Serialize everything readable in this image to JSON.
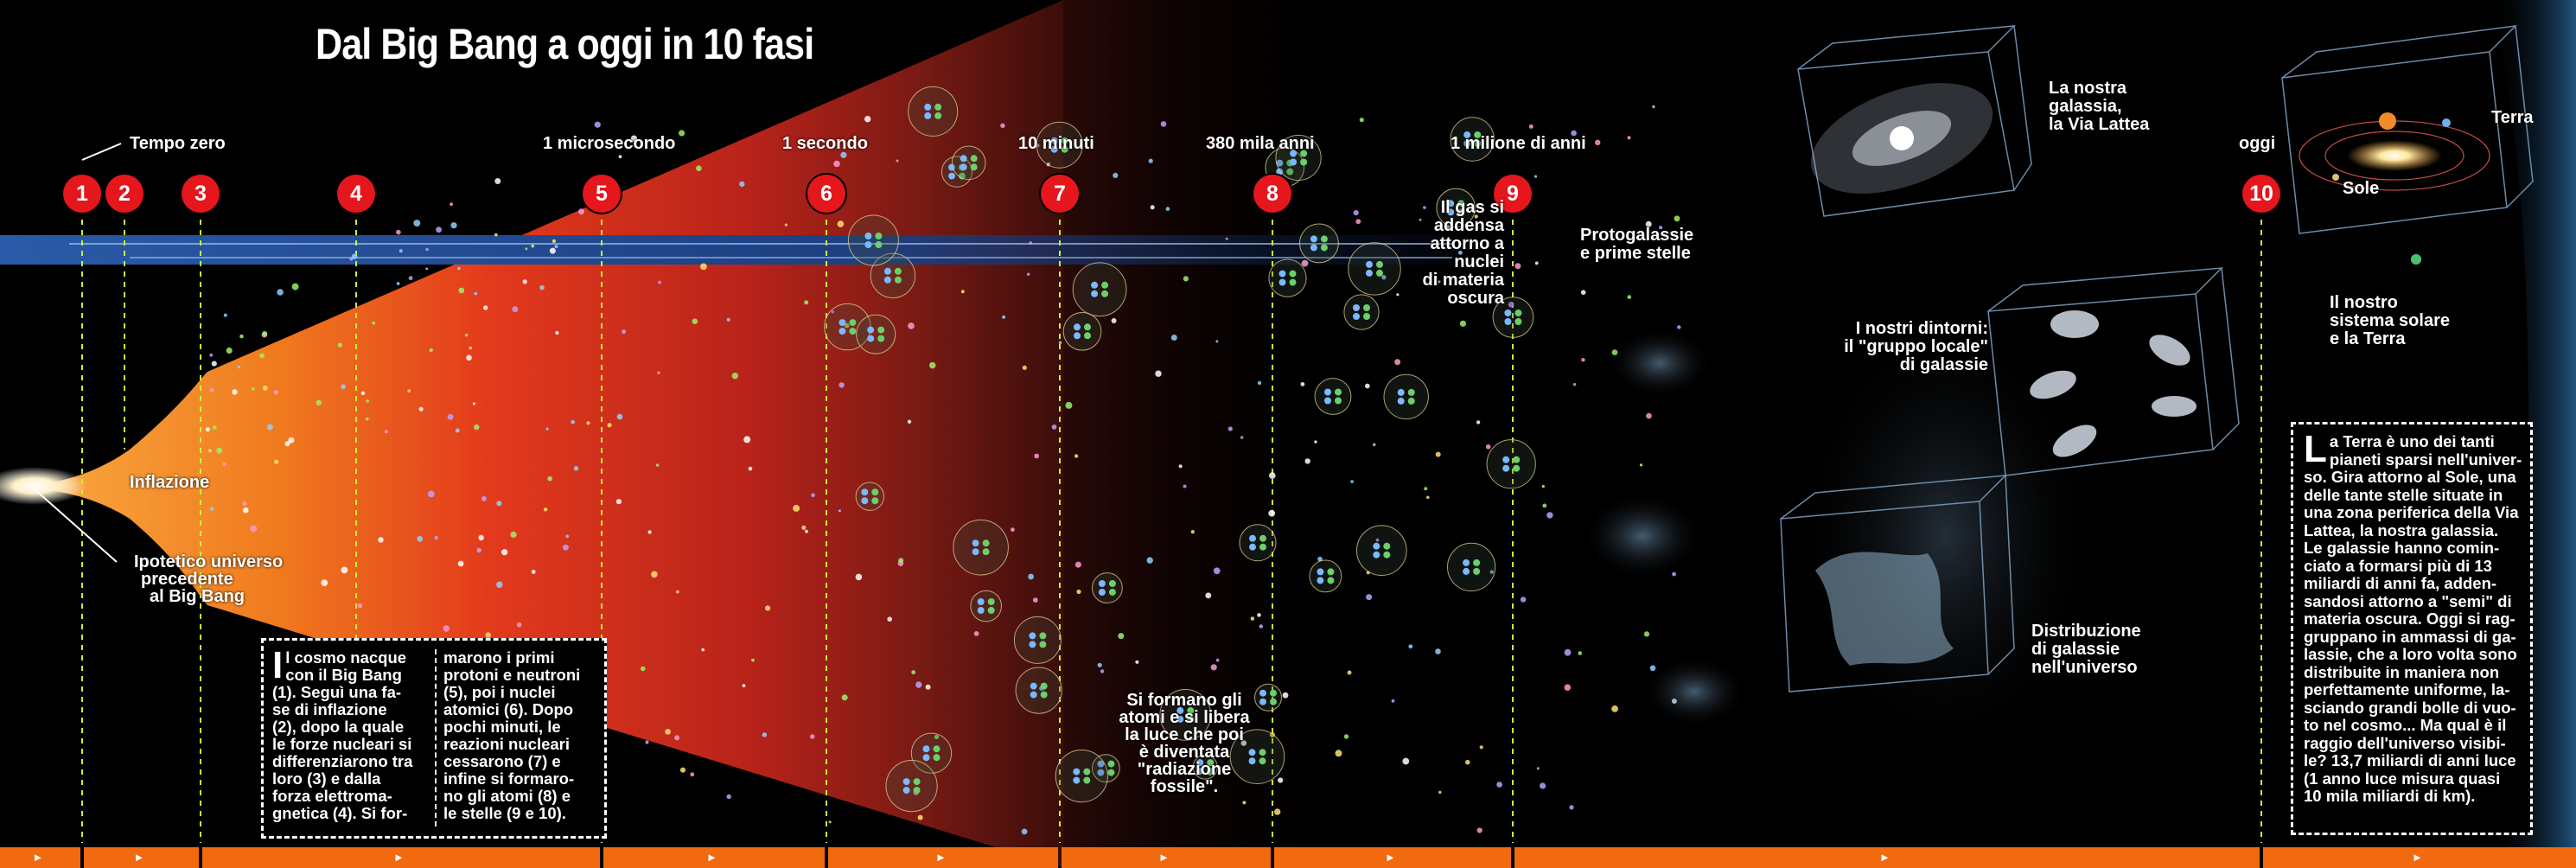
{
  "title": "Dal Big Bang a oggi in 10 fasi",
  "time_labels": {
    "t0": "Tempo zero",
    "t1": "1 microsecondo",
    "t2": "1 secondo",
    "t3": "10 minuti",
    "t4": "380 mila anni",
    "t5": "1 milione di anni",
    "t6": "oggi"
  },
  "phases": [
    "1",
    "2",
    "3",
    "4",
    "5",
    "6",
    "7",
    "8",
    "9",
    "10"
  ],
  "labels": {
    "inflazione": "Inflazione",
    "ipotetico_1": "Ipotetico universo",
    "ipotetico_2": "precedente",
    "ipotetico_3": "al Big Bang",
    "gas_1": "Il gas si",
    "gas_2": "addensa",
    "gas_3": "attorno a",
    "gas_4": "nuclei",
    "gas_5": "di materia",
    "gas_6": "oscura",
    "proto_1": "Protogalassie",
    "proto_2": "e prime stelle",
    "atomi_1": "Si formano gli",
    "atomi_2": "atomi e si libera",
    "atomi_3": "la luce che poi",
    "atomi_4": "è diventata",
    "atomi_5": "\"radiazione",
    "atomi_6": "fossile\".",
    "vialattea_1": "La nostra",
    "vialattea_2": "galassia,",
    "vialattea_3": "la Via Lattea",
    "dintorni_1": "I nostri dintorni:",
    "dintorni_2": "il \"gruppo locale\"",
    "dintorni_3": "di galassie",
    "distrib_1": "Distribuzione",
    "distrib_2": "di galassie",
    "distrib_3": "nell'universo",
    "terra": "Terra",
    "sole": "Sole",
    "sistema_1": "Il nostro",
    "sistema_2": "sistema solare",
    "sistema_3": "e la Terra"
  },
  "box_left": {
    "col1": [
      "l cosmo nacque",
      "con il Big Bang",
      "(1). Seguì una fa-",
      "se di inflazione",
      "(2), dopo la quale",
      "le forze nucleari si",
      "differenziarono tra",
      "loro (3) e dalla",
      "forza elettroma-",
      "gnetica (4). Si for-"
    ],
    "col1_cap": "I",
    "col2": [
      "marono i primi",
      "protoni e neutroni",
      "(5), poi i nuclei",
      "atomici (6). Dopo",
      "pochi minuti, le",
      "reazioni nucleari",
      "cessarono (7) e",
      "infine si formaro-",
      "no gli atomi (8) e",
      "le stelle (9 e 10)."
    ]
  },
  "box_right": {
    "cap": "L",
    "lines": [
      "a Terra è uno dei tanti",
      "pianeti sparsi nell'univer-",
      "so. Gira attorno al Sole, una",
      "delle tante stelle situate in",
      "una zona periferica della Via",
      "Lattea, la nostra galassia.",
      "Le galassie hanno comin-",
      "ciato a formarsi più di 13",
      "miliardi di anni fa, adden-",
      "sandosi attorno a \"semi\" di",
      "materia oscura. Oggi si rag-",
      "gruppano in ammassi di ga-",
      "lassie, che a loro volta sono",
      "distribuite in maniera non",
      "perfettamente uniforme, la-",
      "sciando grandi bolle di vuo-",
      "to nel cosmo... Ma qual è il",
      "raggio dell'universo visibi-",
      "le? 13,7 miliardi di anni luce",
      "(1 anno luce misura quasi",
      "10 mila miliardi di km)."
    ]
  },
  "timeline_arrows": [
    "►",
    "►",
    "►",
    "►",
    "►",
    "►",
    "►",
    "►",
    "►",
    "►",
    "►"
  ],
  "colors": {
    "marker": "#e5161c",
    "timeline": "#f26a10",
    "fireball_red": "#c8241a",
    "fireball_orange": "#f5821e",
    "band_blue": "#1f4f9a"
  }
}
